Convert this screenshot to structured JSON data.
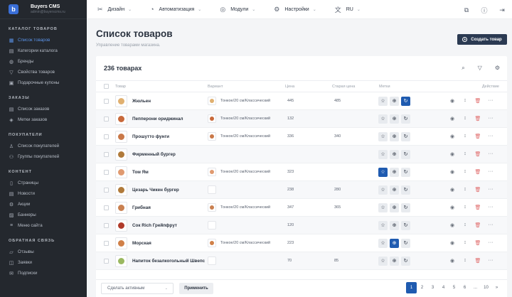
{
  "brand": {
    "name": "Buyers CMS",
    "subtitle": "admin@buyerscms.ru",
    "logo_letter": "b"
  },
  "sidebar": {
    "sections": [
      {
        "title": "КАТАЛОГ ТОВАРОВ",
        "items": [
          {
            "label": "Список товаров",
            "icon": "grid-icon",
            "active": true
          },
          {
            "label": "Категории каталога",
            "icon": "clipboard-icon"
          },
          {
            "label": "Бренды",
            "icon": "apple-icon"
          },
          {
            "label": "Свойства товаров",
            "icon": "filter-icon"
          },
          {
            "label": "Подарочные купоны",
            "icon": "ticket-icon"
          }
        ]
      },
      {
        "title": "ЗАКАЗЫ",
        "items": [
          {
            "label": "Список заказов",
            "icon": "orders-icon"
          },
          {
            "label": "Метки заказов",
            "icon": "tags-icon"
          }
        ]
      },
      {
        "title": "ПОКУПАТЕЛИ",
        "items": [
          {
            "label": "Список покупателей",
            "icon": "user-icon"
          },
          {
            "label": "Группы покупателей",
            "icon": "users-icon"
          }
        ]
      },
      {
        "title": "КОНТЕНТ",
        "items": [
          {
            "label": "Страницы",
            "icon": "page-icon"
          },
          {
            "label": "Новости",
            "icon": "news-icon"
          },
          {
            "label": "Акции",
            "icon": "percent-icon"
          },
          {
            "label": "Баннеры",
            "icon": "image-icon"
          },
          {
            "label": "Меню сайта",
            "icon": "menu-icon"
          }
        ]
      },
      {
        "title": "ОБРАТНАЯ СВЯЗЬ",
        "items": [
          {
            "label": "Отзывы",
            "icon": "reviews-icon"
          },
          {
            "label": "Заявки",
            "icon": "requests-icon"
          },
          {
            "label": "Подписки",
            "icon": "mail-icon"
          }
        ]
      }
    ]
  },
  "topbar": {
    "menu": [
      {
        "label": "Дизайн",
        "icon": "design-icon"
      },
      {
        "label": "Автоматизация",
        "icon": "automation-icon"
      },
      {
        "label": "Модули",
        "icon": "modules-icon"
      },
      {
        "label": "Настройки",
        "icon": "settings-icon"
      },
      {
        "label": "RU",
        "icon": "language-icon"
      }
    ]
  },
  "page": {
    "title": "Список товаров",
    "subtitle": "Управление товарами магазина.",
    "create_label": "Создать товар"
  },
  "table": {
    "count_label": "236 товарах",
    "columns": {
      "product": "Товар",
      "variant": "Вариант",
      "price": "Цена",
      "old_price": "Старая цена",
      "tags": "Метки",
      "actions": "Действие"
    },
    "rows": [
      {
        "name": "Жюльен",
        "variant": "Тонкое/20 см/Классический",
        "price": "445",
        "old_price": "485",
        "color": "#e0b070",
        "tags": [
          false,
          false,
          true
        ]
      },
      {
        "name": "Пепперони ориджинал",
        "variant": "Тонкое/20 см/Классический",
        "price": "132",
        "old_price": "",
        "color": "#c8693a",
        "tags": [
          false,
          false,
          false
        ]
      },
      {
        "name": "Прошутто фунги",
        "variant": "Тонкое/20 см/Классический",
        "price": "336",
        "old_price": "340",
        "color": "#c97848",
        "tags": [
          false,
          false,
          false
        ]
      },
      {
        "name": "Фирменный бургер",
        "variant": "",
        "price": "",
        "old_price": "",
        "color": "#b07a3a",
        "tags": [
          false,
          false,
          false
        ]
      },
      {
        "name": "Том Ям",
        "variant": "Тонкое/20 см/Классический",
        "price": "323",
        "old_price": "",
        "color": "#e09a70",
        "tags": [
          true,
          false,
          false
        ]
      },
      {
        "name": "Цезарь Чикен бургер",
        "variant": "",
        "price": "238",
        "old_price": "280",
        "color": "#b07a3a",
        "tags": [
          false,
          false,
          false
        ]
      },
      {
        "name": "Грибная",
        "variant": "Тонкое/20 см/Классический",
        "price": "347",
        "old_price": "365",
        "color": "#c98050",
        "tags": [
          false,
          false,
          false
        ]
      },
      {
        "name": "Сок Rich Грейпфрут",
        "variant": "",
        "price": "120",
        "old_price": "",
        "color": "#b03a2a",
        "tags": [
          false,
          false,
          false
        ]
      },
      {
        "name": "Морская",
        "variant": "Тонкое/20 см/Классический",
        "price": "223",
        "old_price": "",
        "color": "#d08048",
        "tags": [
          false,
          true,
          false
        ]
      },
      {
        "name": "Напиток безалкогольный Швепс",
        "variant": "",
        "price": "70",
        "old_price": "85",
        "color": "#9ab860",
        "tags": [
          false,
          false,
          false
        ]
      }
    ]
  },
  "bulk": {
    "action": "Сделать активным",
    "apply_label": "Применить"
  },
  "pagination": {
    "pages": [
      "1",
      "2",
      "3",
      "4",
      "5",
      "6",
      "...",
      "10",
      "»"
    ],
    "current": "1"
  }
}
